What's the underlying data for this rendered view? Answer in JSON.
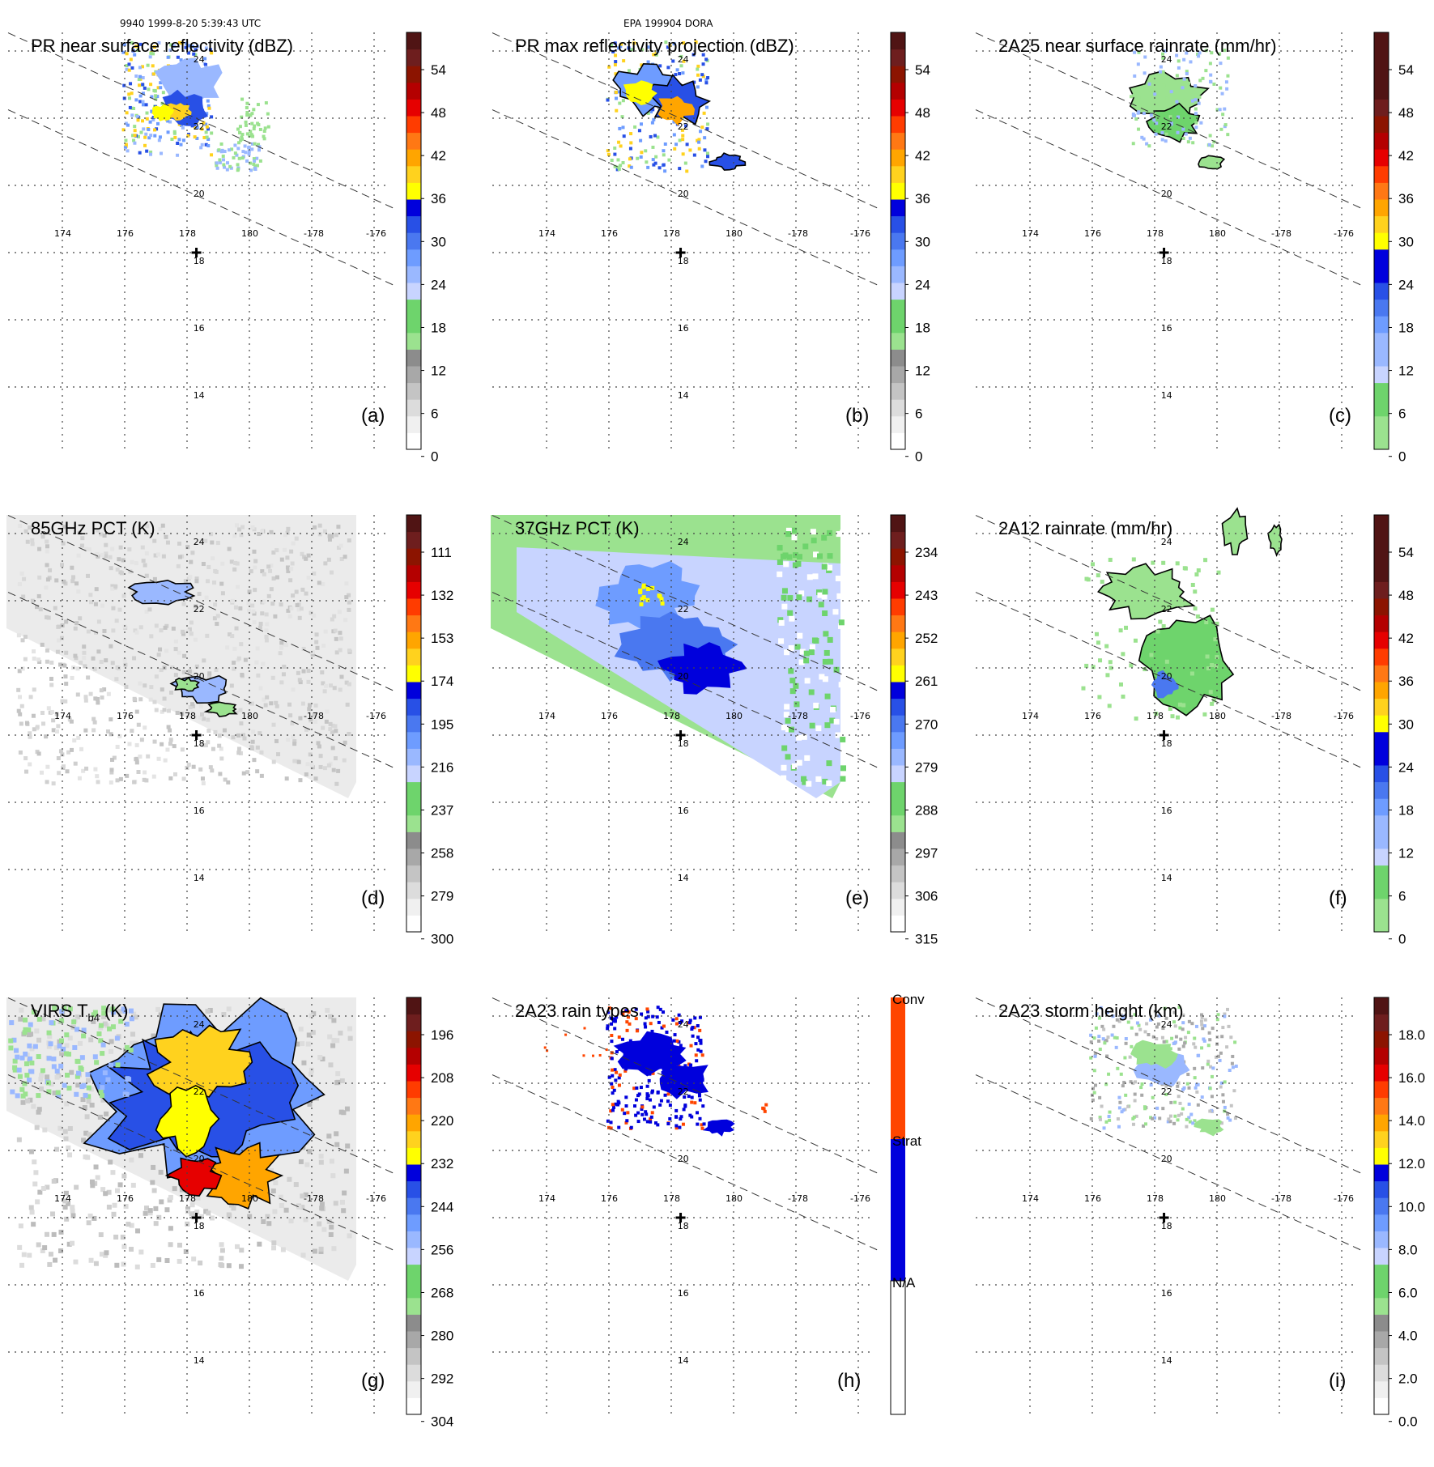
{
  "header": {
    "left": "9940 1999-8-20 5:39:43 UTC",
    "center": "EPA 199904 DORA"
  },
  "colors": {
    "gray": [
      "#ffffff",
      "#f0f0f0",
      "#dcdcdc",
      "#c4c4c4",
      "#a8a8a8",
      "#8c8c8c"
    ],
    "green": [
      "#9be28f",
      "#6ed46c"
    ],
    "blue": [
      "#c8d4ff",
      "#9ab8ff",
      "#6e9cff",
      "#4a78f0",
      "#2850e6",
      "#0000dc"
    ],
    "yellow": "#ffff00",
    "orange": [
      "#ffd21e",
      "#ffa500",
      "#ff7814"
    ],
    "red": [
      "#ff3c00",
      "#e60000",
      "#b40000"
    ],
    "dark": [
      "#8c1400",
      "#6e1e1e",
      "#501414"
    ],
    "conv": "#ff4500",
    "strat": "#0000dc"
  },
  "map": {
    "lon_ticks": [
      "174",
      "176",
      "178",
      "180",
      "-178",
      "-176"
    ],
    "lat_ticks": [
      "24",
      "22",
      "20",
      "18",
      "16",
      "14"
    ],
    "storm_center": {
      "lon": 178.3,
      "lat": 18.0
    }
  },
  "panels": [
    {
      "id": "a",
      "title": "PR near surface reflectivity (dBZ)",
      "label": "(a)",
      "scale": "dbz",
      "ticks": [
        "54",
        "48",
        "42",
        "36",
        "30",
        "24",
        "18",
        "12",
        "6",
        "0"
      ],
      "field": "pr"
    },
    {
      "id": "b",
      "title": "PR max reflectivity projection (dBZ)",
      "label": "(b)",
      "scale": "dbz",
      "ticks": [
        "54",
        "48",
        "42",
        "36",
        "30",
        "24",
        "18",
        "12",
        "6",
        "0"
      ],
      "field": "prmax"
    },
    {
      "id": "c",
      "title": "2A25 near surface rainrate (mm/hr)",
      "label": "(c)",
      "scale": "rain",
      "ticks": [
        "54",
        "48",
        "42",
        "36",
        "30",
        "24",
        "18",
        "12",
        "6",
        "0"
      ],
      "field": "rain25"
    },
    {
      "id": "d",
      "title": "85GHz PCT (K)",
      "label": "(d)",
      "scale": "pct",
      "ticks": [
        "111",
        "132",
        "153",
        "174",
        "195",
        "216",
        "237",
        "258",
        "279",
        "300"
      ],
      "field": "pct85"
    },
    {
      "id": "e",
      "title": "37GHz PCT (K)",
      "label": "(e)",
      "scale": "pct",
      "ticks": [
        "234",
        "243",
        "252",
        "261",
        "270",
        "279",
        "288",
        "297",
        "306",
        "315"
      ],
      "field": "pct37"
    },
    {
      "id": "f",
      "title": "2A12 rainrate (mm/hr)",
      "label": "(f)",
      "scale": "rain",
      "ticks": [
        "54",
        "48",
        "42",
        "36",
        "30",
        "24",
        "18",
        "12",
        "6",
        "0"
      ],
      "field": "rain12"
    },
    {
      "id": "g",
      "title": "VIRS T",
      "label": "(g)",
      "scale": "pct",
      "ticks": [
        "196",
        "208",
        "220",
        "232",
        "244",
        "256",
        "268",
        "280",
        "292",
        "304"
      ],
      "field": "virs",
      "title_sub": "b4",
      "title_suffix": "(K)"
    },
    {
      "id": "h",
      "title": "2A23 rain types",
      "label": "(h)",
      "scale": "types",
      "ticks": [
        "Conv",
        "Strat",
        "N/A"
      ],
      "field": "types"
    },
    {
      "id": "i",
      "title": "2A23 storm height (km)",
      "label": "(i)",
      "scale": "height",
      "ticks": [
        "18.0",
        "16.0",
        "14.0",
        "12.0",
        "10.0",
        "8.0",
        "6.0",
        "4.0",
        "2.0",
        "0.0"
      ],
      "field": "height"
    }
  ]
}
